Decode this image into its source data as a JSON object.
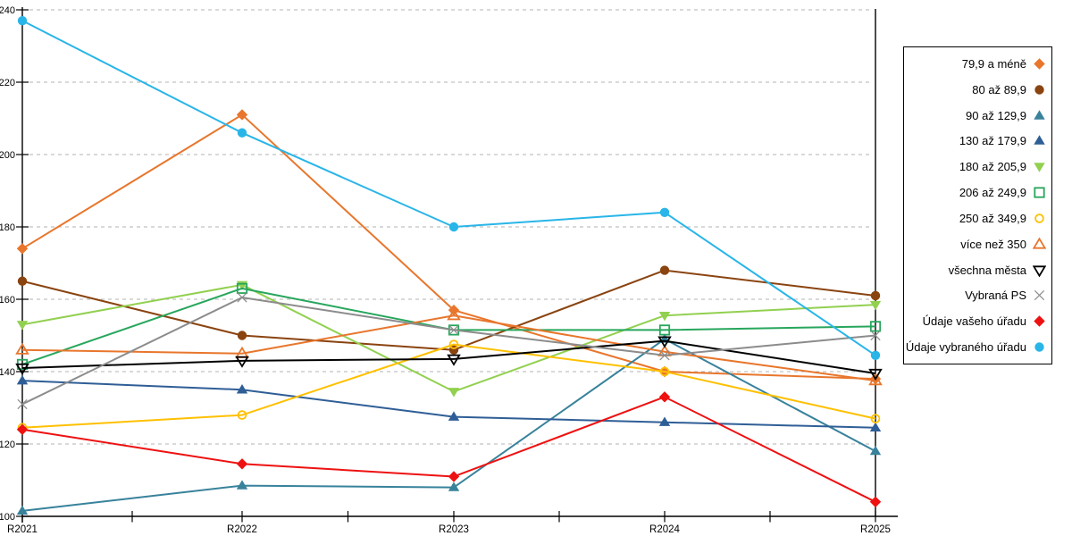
{
  "chart_data": {
    "type": "line",
    "title": "",
    "xlabel": "",
    "ylabel": "",
    "categories": [
      "R2021",
      "R2022",
      "R2023",
      "R2024",
      "R2025"
    ],
    "ylim": [
      100,
      240
    ],
    "yticks": [
      100,
      120,
      140,
      160,
      180,
      200,
      220,
      240
    ],
    "grid": "horizontal-dashed",
    "legend_position": "right",
    "axis_color": "#000000",
    "gridline_color": "#b3b3b3",
    "series": [
      {
        "name": "79,9 a méně",
        "color": "#e8762c",
        "marker": "diamond",
        "filled": true,
        "values": [
          174,
          211,
          157,
          140,
          138
        ]
      },
      {
        "name": "80 až 89,9",
        "color": "#8a4410",
        "marker": "circle",
        "filled": true,
        "values": [
          165,
          150,
          146,
          168,
          161
        ]
      },
      {
        "name": "90 až 129,9",
        "color": "#38829b",
        "marker": "triangle-up",
        "filled": true,
        "values": [
          101.5,
          108.5,
          108,
          149,
          118
        ]
      },
      {
        "name": "130 až 179,9",
        "color": "#2f5e96",
        "marker": "triangle-up",
        "filled": true,
        "values": [
          137.5,
          135,
          127.5,
          126,
          124.5
        ]
      },
      {
        "name": "180 až 205,9",
        "color": "#92d050",
        "marker": "triangle-down",
        "filled": true,
        "values": [
          153,
          164,
          134.5,
          155.5,
          158.5
        ]
      },
      {
        "name": "206 až 249,9",
        "color": "#27a65c",
        "marker": "square",
        "filled": false,
        "values": [
          142,
          163,
          151.5,
          151.5,
          152.5
        ]
      },
      {
        "name": "250 až 349,9",
        "color": "#ffc000",
        "marker": "circle",
        "filled": false,
        "values": [
          124.5,
          128,
          147.5,
          140,
          127
        ]
      },
      {
        "name": "více než 350",
        "color": "#e8762c",
        "marker": "triangle-up",
        "filled": false,
        "values": [
          146,
          145,
          155.5,
          145.5,
          137.5
        ]
      },
      {
        "name": "všechna města",
        "color": "#000000",
        "marker": "triangle-down",
        "filled": false,
        "values": [
          141,
          143,
          143.5,
          148.5,
          139.5
        ]
      },
      {
        "name": "Vybraná PS",
        "color": "#8c8c8c",
        "marker": "x",
        "filled": false,
        "values": [
          131,
          160.5,
          151.5,
          144.5,
          150
        ]
      },
      {
        "name": "Údaje vašeho úřadu",
        "color": "#ee1111",
        "marker": "diamond",
        "filled": true,
        "values": [
          124,
          114.5,
          111,
          133,
          104
        ]
      },
      {
        "name": "Údaje vybraného úřadu",
        "color": "#29b5e8",
        "marker": "circle",
        "filled": true,
        "values": [
          237,
          206,
          180,
          184,
          144.5
        ]
      }
    ]
  }
}
